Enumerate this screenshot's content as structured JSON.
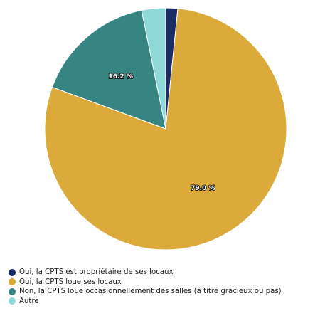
{
  "chart_data": {
    "type": "pie",
    "title": "",
    "slices": [
      {
        "label": "Oui, la CPTS est propriétaire de ses locaux",
        "value": 1.6,
        "color": "#1d2b63"
      },
      {
        "label": "Oui, la CPTS loue ses locaux",
        "value": 79.0,
        "color": "#dbaa3a"
      },
      {
        "label": "Non, la CPTS loue occasionnellement des salles (à titre gracieux ou pas)",
        "value": 16.2,
        "color": "#378582"
      },
      {
        "label": "Autre",
        "value": 3.2,
        "color": "#8ed9d8"
      }
    ],
    "data_labels": [
      {
        "slice": 1,
        "text": "79.0 %"
      },
      {
        "slice": 2,
        "text": "16.2 %"
      }
    ],
    "legend_placement": "bottom-left",
    "start_angle": "12 o'clock",
    "direction": "clockwise"
  }
}
